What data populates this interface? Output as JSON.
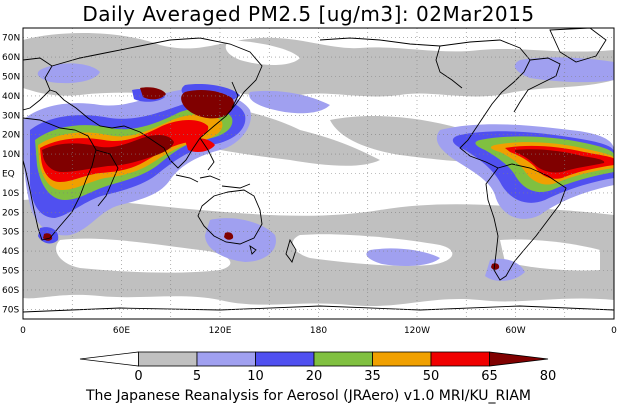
{
  "title": "Daily Averaged PM2.5 [ug/m3]: 02Mar2015",
  "footer": "The Japanese Reanalysis for Aerosol (JRAero) v1.0 MRI/KU_RIAM",
  "lat_labels": [
    "70N",
    "60N",
    "50N",
    "40N",
    "30N",
    "20N",
    "10N",
    "EQ",
    "10S",
    "20S",
    "30S",
    "40S",
    "50S",
    "60S",
    "70S"
  ],
  "lon_labels": [
    "0",
    "60E",
    "120E",
    "180",
    "120W",
    "60W",
    "0"
  ],
  "colorbar": {
    "ticks": [
      "0",
      "5",
      "10",
      "20",
      "35",
      "50",
      "65",
      "80"
    ],
    "colors": [
      "#ffffff",
      "#c0c0c0",
      "#a0a0f0",
      "#5050f0",
      "#80c040",
      "#f0a000",
      "#f00000",
      "#800000"
    ]
  }
}
